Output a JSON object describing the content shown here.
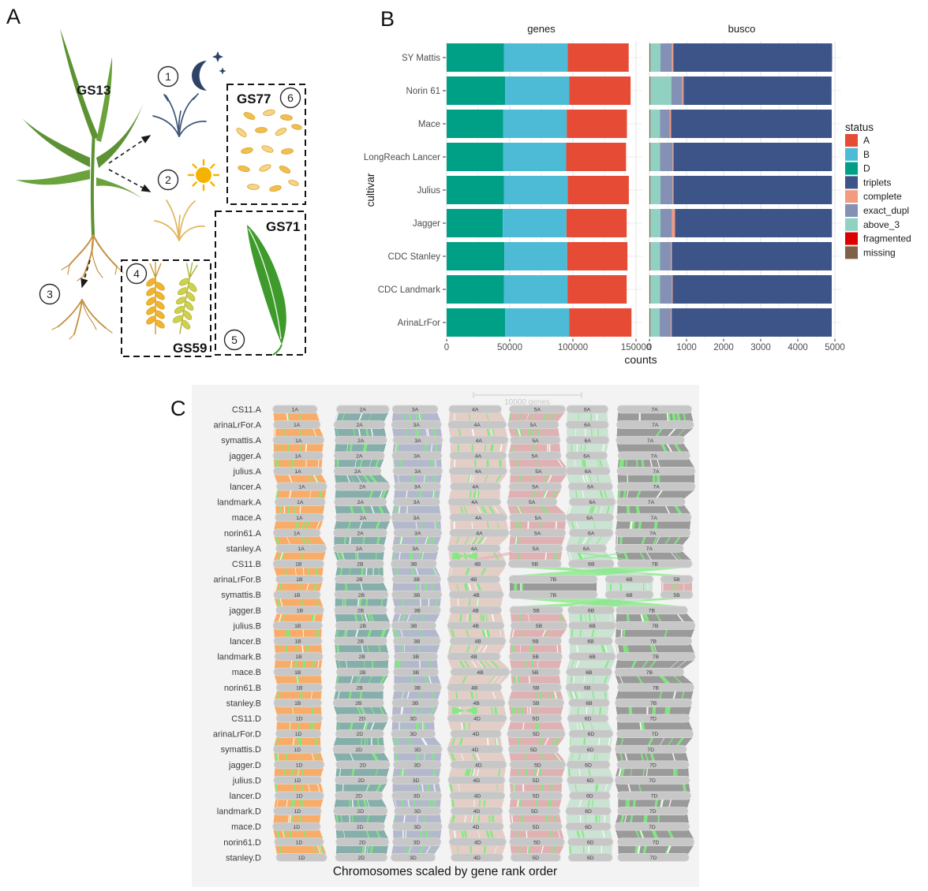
{
  "panelA": {
    "label": "A",
    "plant_label": "GS13",
    "stages": {
      "gs77": "GS77",
      "gs71": "GS71",
      "gs59": "GS59"
    },
    "markers": [
      "1",
      "2",
      "3",
      "4",
      "5",
      "6"
    ],
    "icons": [
      "moon-stars-icon",
      "sun-icon",
      "seedling-night-icon",
      "seedling-day-icon",
      "roots-icon",
      "wheat-spikes-icon",
      "flag-leaf-icon",
      "grains-icon"
    ]
  },
  "panelB": {
    "label": "B",
    "ylabel": "cultivar",
    "xlabel": "counts",
    "facets": [
      "genes",
      "busco"
    ],
    "legend": {
      "title": "status",
      "entries": [
        {
          "label": "A",
          "color": "#E64B35"
        },
        {
          "label": "B",
          "color": "#4DBBD5"
        },
        {
          "label": "D",
          "color": "#00A087"
        },
        {
          "label": "triplets",
          "color": "#3C5488"
        },
        {
          "label": "complete",
          "color": "#F39B7F"
        },
        {
          "label": "exact_dupl",
          "color": "#8491B4"
        },
        {
          "label": "above_3",
          "color": "#91D1C2"
        },
        {
          "label": "fragmented",
          "color": "#DC0000"
        },
        {
          "label": "missing",
          "color": "#7E6148"
        }
      ]
    },
    "chart_data": [
      {
        "type": "bar",
        "stacked": true,
        "orientation": "horizontal",
        "facet": "genes",
        "categories": [
          "SY Mattis",
          "Norin 61",
          "Mace",
          "LongReach Lancer",
          "Julius",
          "Jagger",
          "CDC Stanley",
          "CDC Landmark",
          "ArinaLrFor"
        ],
        "series": [
          {
            "name": "D",
            "color": "#00A087",
            "values": [
              45300,
              46400,
              44700,
              44700,
              45300,
              44500,
              45700,
              45500,
              46400
            ]
          },
          {
            "name": "B",
            "color": "#4DBBD5",
            "values": [
              50600,
              50800,
              50400,
              50000,
              50600,
              50400,
              49800,
              50200,
              50800
            ]
          },
          {
            "name": "A",
            "color": "#E64B35",
            "values": [
              48300,
              48500,
              47700,
              47400,
              48400,
              47700,
              47700,
              46900,
              49200
            ]
          }
        ],
        "xlim": [
          0,
          150000
        ],
        "xticks": [
          0,
          50000,
          100000,
          150000
        ],
        "minor_step": 25000,
        "grid": true
      },
      {
        "type": "bar",
        "stacked": true,
        "orientation": "horizontal",
        "facet": "busco",
        "categories": [
          "SY Mattis",
          "Norin 61",
          "Mace",
          "LongReach Lancer",
          "Julius",
          "Jagger",
          "CDC Stanley",
          "CDC Landmark",
          "ArinaLrFor"
        ],
        "series": [
          {
            "name": "missing",
            "color": "#7E6148",
            "values": [
              12,
              12,
              12,
              12,
              12,
              12,
              12,
              12,
              12
            ]
          },
          {
            "name": "fragmented",
            "color": "#DC0000",
            "values": [
              8,
              8,
              8,
              8,
              8,
              8,
              8,
              8,
              8
            ]
          },
          {
            "name": "above_3",
            "color": "#91D1C2",
            "values": [
              275,
              570,
              265,
              265,
              275,
              275,
              265,
              265,
              255
            ]
          },
          {
            "name": "exact_dupl",
            "color": "#8491B4",
            "values": [
              310,
              295,
              265,
              340,
              330,
              310,
              295,
              320,
              300
            ]
          },
          {
            "name": "complete",
            "color": "#F39B7F",
            "values": [
              40,
              35,
              35,
              25,
              25,
              85,
              25,
              20,
              25
            ]
          },
          {
            "name": "triplets",
            "color": "#3C5488",
            "values": [
              4280,
              3990,
              4330,
              4270,
              4270,
              4230,
              4310,
              4290,
              4315
            ]
          }
        ],
        "xlim": [
          0,
          5000
        ],
        "xticks": [
          0,
          1000,
          2000,
          3000,
          4000,
          5000
        ],
        "minor_step": 500,
        "grid": true
      }
    ]
  },
  "panelC": {
    "label": "C",
    "scalebar_label": "10000 genes",
    "caption": "Chromosomes scaled by gene rank order",
    "genomes": [
      "CS11",
      "arinaLrFor",
      "symattis",
      "jagger",
      "julius",
      "lancer",
      "landmark",
      "mace",
      "norin61",
      "stanley"
    ],
    "subgenomes": [
      "A",
      "B",
      "D"
    ],
    "chromosomes": [
      "1",
      "2",
      "3",
      "4",
      "5",
      "6",
      "7"
    ],
    "column_colors": {
      "1": "#F9AC67",
      "2": "#86AEAA",
      "3": "#B3B8CD",
      "4": "#E4CDC5",
      "5": "#DFB1B3",
      "6": "#CBE3D3",
      "7": "#9A9A9A"
    },
    "block_color": "#C7C7C7",
    "inversion_color": "#7FE97F",
    "special_orders": {
      "arinaLrFor.B": [
        1,
        2,
        3,
        4,
        7,
        6,
        5
      ],
      "symattis.B": [
        1,
        2,
        3,
        4,
        7,
        6,
        5
      ]
    }
  }
}
